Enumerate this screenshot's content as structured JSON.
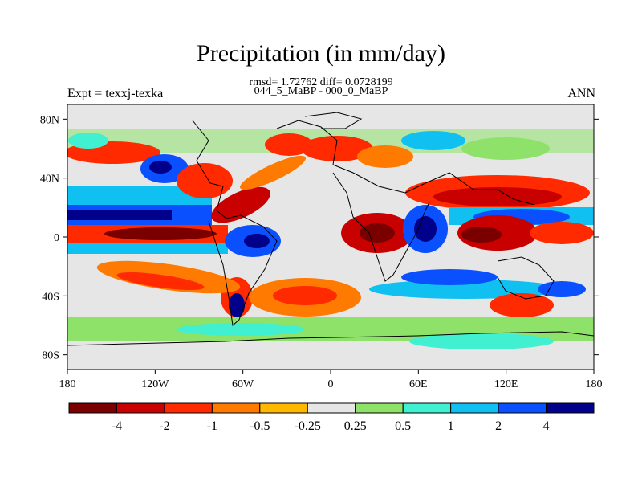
{
  "title": "Precipitation (in mm/day)",
  "stats_line": "rmsd= 1.72762 diff= 0.0728199",
  "subtitle": "044_5_MaBP - 000_0_MaBP",
  "left_label": "Expt = texxj-texka",
  "right_label": "ANN",
  "lat_ticks": [
    "80N",
    "40N",
    "0",
    "40S",
    "80S"
  ],
  "lon_ticks": [
    "180",
    "120W",
    "60W",
    "0",
    "60E",
    "120E",
    "180"
  ],
  "colorbar": {
    "levels": [
      "-4",
      "-2",
      "-1",
      "-0.5",
      "-0.25",
      "0.25",
      "0.5",
      "1",
      "2",
      "4"
    ],
    "colors": [
      "#7a0000",
      "#c80000",
      "#ff2a00",
      "#ff7a00",
      "#ffb800",
      "#e6e6e6",
      "#8ee26a",
      "#40f0d0",
      "#10c0f0",
      "#0a50ff",
      "#00008a"
    ]
  },
  "colors": {
    "dry_strong": "#7a0000",
    "dry": "#c80000",
    "red": "#ff2a00",
    "orange": "#ff7a00",
    "amber": "#ffb800",
    "neutral": "#e6e6e6",
    "green": "#8ee26a",
    "teal": "#40f0d0",
    "sky": "#10c0f0",
    "blue": "#0a50ff",
    "navy": "#00008a"
  }
}
